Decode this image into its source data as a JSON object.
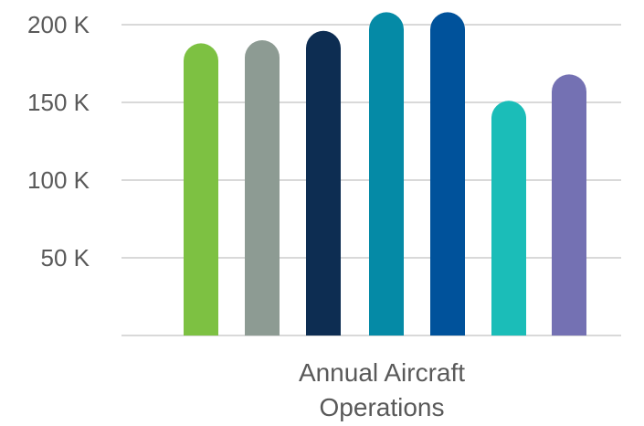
{
  "chart_data": {
    "type": "bar",
    "categories": [
      "Annual Aircraft Operations"
    ],
    "series": [
      {
        "values": [
          188000
        ],
        "color": "#7dc142"
      },
      {
        "values": [
          190000
        ],
        "color": "#8d9b93"
      },
      {
        "values": [
          196000
        ],
        "color": "#0d2d52"
      },
      {
        "values": [
          208000
        ],
        "color": "#058aa6"
      },
      {
        "values": [
          208000
        ],
        "color": "#00529b"
      },
      {
        "values": [
          151000
        ],
        "color": "#1bbdb8"
      },
      {
        "values": [
          168000
        ],
        "color": "#7471b3"
      }
    ],
    "y_ticks": [
      {
        "value": 50000,
        "label": "50 K"
      },
      {
        "value": 100000,
        "label": "100 K"
      },
      {
        "value": 150000,
        "label": "150 K"
      },
      {
        "value": 200000,
        "label": "200 K"
      }
    ],
    "category_label_lines": [
      "Annual Aircraft",
      "Operations"
    ],
    "ylim": [
      0,
      200000
    ],
    "grid": true,
    "legend": "none",
    "title": "",
    "xlabel": "",
    "ylabel": ""
  }
}
